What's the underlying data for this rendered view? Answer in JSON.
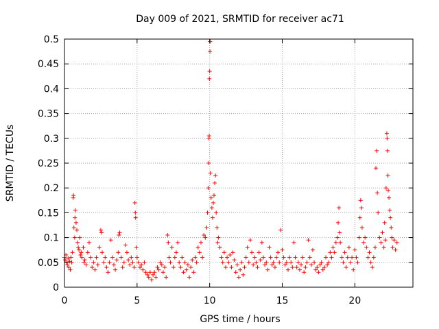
{
  "chart_data": {
    "type": "scatter",
    "title": "Day 009 of 2021, SRMTID for receiver ac71",
    "xlabel": "GPS time / hours",
    "ylabel": "SRMTID / TECUs",
    "xlim": [
      0,
      24
    ],
    "ylim": [
      0,
      0.5
    ],
    "xticks": [
      0,
      5,
      10,
      15,
      20
    ],
    "xtick_labels": [
      "0",
      "5",
      "10",
      "15",
      "20"
    ],
    "yticks": [
      0,
      0.05,
      0.1,
      0.15,
      0.2,
      0.25,
      0.3,
      0.35,
      0.4,
      0.45,
      0.5
    ],
    "ytick_labels": [
      "0",
      "0.05",
      "0.1",
      "0.15",
      "0.2",
      "0.25",
      "0.3",
      "0.35",
      "0.4",
      "0.45",
      "0.5"
    ],
    "grid": true,
    "marker": "+",
    "marker_color": "#ff0000",
    "series": [
      {
        "name": "SRMTID",
        "points": [
          [
            0.0,
            0.06
          ],
          [
            0.05,
            0.055
          ],
          [
            0.1,
            0.065
          ],
          [
            0.15,
            0.05
          ],
          [
            0.2,
            0.045
          ],
          [
            0.25,
            0.058
          ],
          [
            0.3,
            0.04
          ],
          [
            0.35,
            0.052
          ],
          [
            0.4,
            0.035
          ],
          [
            0.45,
            0.06
          ],
          [
            0.5,
            0.05
          ],
          [
            0.55,
            0.07
          ],
          [
            0.6,
            0.18
          ],
          [
            0.62,
            0.185
          ],
          [
            0.65,
            0.12
          ],
          [
            0.7,
            0.1
          ],
          [
            0.72,
            0.14
          ],
          [
            0.75,
            0.155
          ],
          [
            0.8,
            0.13
          ],
          [
            0.85,
            0.115
          ],
          [
            0.9,
            0.09
          ],
          [
            0.95,
            0.08
          ],
          [
            1.0,
            0.075
          ],
          [
            1.05,
            0.1
          ],
          [
            1.1,
            0.065
          ],
          [
            1.15,
            0.07
          ],
          [
            1.2,
            0.06
          ],
          [
            1.3,
            0.08
          ],
          [
            1.35,
            0.05
          ],
          [
            1.4,
            0.055
          ],
          [
            1.5,
            0.045
          ],
          [
            1.6,
            0.07
          ],
          [
            1.7,
            0.09
          ],
          [
            1.8,
            0.06
          ],
          [
            1.9,
            0.04
          ],
          [
            2.0,
            0.05
          ],
          [
            2.1,
            0.035
          ],
          [
            2.2,
            0.06
          ],
          [
            2.3,
            0.045
          ],
          [
            2.4,
            0.08
          ],
          [
            2.5,
            0.115
          ],
          [
            2.55,
            0.11
          ],
          [
            2.6,
            0.07
          ],
          [
            2.7,
            0.05
          ],
          [
            2.8,
            0.06
          ],
          [
            2.9,
            0.04
          ],
          [
            3.0,
            0.03
          ],
          [
            3.1,
            0.05
          ],
          [
            3.2,
            0.095
          ],
          [
            3.3,
            0.06
          ],
          [
            3.4,
            0.045
          ],
          [
            3.5,
            0.035
          ],
          [
            3.6,
            0.055
          ],
          [
            3.7,
            0.07
          ],
          [
            3.75,
            0.105
          ],
          [
            3.8,
            0.11
          ],
          [
            3.9,
            0.06
          ],
          [
            4.0,
            0.04
          ],
          [
            4.1,
            0.05
          ],
          [
            4.2,
            0.085
          ],
          [
            4.3,
            0.07
          ],
          [
            4.4,
            0.055
          ],
          [
            4.5,
            0.045
          ],
          [
            4.6,
            0.06
          ],
          [
            4.7,
            0.05
          ],
          [
            4.8,
            0.04
          ],
          [
            4.85,
            0.17
          ],
          [
            4.88,
            0.15
          ],
          [
            4.9,
            0.14
          ],
          [
            4.95,
            0.08
          ],
          [
            5.0,
            0.06
          ],
          [
            5.1,
            0.05
          ],
          [
            5.2,
            0.04
          ],
          [
            5.3,
            0.045
          ],
          [
            5.4,
            0.035
          ],
          [
            5.5,
            0.05
          ],
          [
            5.6,
            0.03
          ],
          [
            5.7,
            0.025
          ],
          [
            5.8,
            0.02
          ],
          [
            5.9,
            0.03
          ],
          [
            6.0,
            0.015
          ],
          [
            6.1,
            0.025
          ],
          [
            6.2,
            0.03
          ],
          [
            6.3,
            0.02
          ],
          [
            6.4,
            0.04
          ],
          [
            6.5,
            0.035
          ],
          [
            6.6,
            0.05
          ],
          [
            6.7,
            0.045
          ],
          [
            6.8,
            0.03
          ],
          [
            6.9,
            0.04
          ],
          [
            7.0,
            0.02
          ],
          [
            7.1,
            0.105
          ],
          [
            7.15,
            0.09
          ],
          [
            7.2,
            0.06
          ],
          [
            7.3,
            0.05
          ],
          [
            7.4,
            0.08
          ],
          [
            7.5,
            0.04
          ],
          [
            7.6,
            0.06
          ],
          [
            7.7,
            0.07
          ],
          [
            7.8,
            0.09
          ],
          [
            7.9,
            0.05
          ],
          [
            8.0,
            0.04
          ],
          [
            8.1,
            0.06
          ],
          [
            8.2,
            0.03
          ],
          [
            8.3,
            0.05
          ],
          [
            8.4,
            0.035
          ],
          [
            8.5,
            0.045
          ],
          [
            8.6,
            0.02
          ],
          [
            8.7,
            0.04
          ],
          [
            8.8,
            0.055
          ],
          [
            8.9,
            0.03
          ],
          [
            9.0,
            0.06
          ],
          [
            9.1,
            0.05
          ],
          [
            9.2,
            0.08
          ],
          [
            9.3,
            0.07
          ],
          [
            9.4,
            0.09
          ],
          [
            9.5,
            0.06
          ],
          [
            9.6,
            0.105
          ],
          [
            9.7,
            0.1
          ],
          [
            9.8,
            0.12
          ],
          [
            9.85,
            0.15
          ],
          [
            9.9,
            0.2
          ],
          [
            9.93,
            0.25
          ],
          [
            9.95,
            0.3
          ],
          [
            9.97,
            0.305
          ],
          [
            9.98,
            0.42
          ],
          [
            10.0,
            0.435
          ],
          [
            10.02,
            0.475
          ],
          [
            10.03,
            0.495
          ],
          [
            10.05,
            0.23
          ],
          [
            10.1,
            0.18
          ],
          [
            10.15,
            0.16
          ],
          [
            10.2,
            0.14
          ],
          [
            10.25,
            0.17
          ],
          [
            10.3,
            0.185
          ],
          [
            10.35,
            0.21
          ],
          [
            10.4,
            0.225
          ],
          [
            10.45,
            0.15
          ],
          [
            10.5,
            0.12
          ],
          [
            10.55,
            0.09
          ],
          [
            10.6,
            0.1
          ],
          [
            10.7,
            0.08
          ],
          [
            10.8,
            0.06
          ],
          [
            10.9,
            0.05
          ],
          [
            11.0,
            0.07
          ],
          [
            11.1,
            0.04
          ],
          [
            11.2,
            0.06
          ],
          [
            11.3,
            0.05
          ],
          [
            11.4,
            0.065
          ],
          [
            11.5,
            0.04
          ],
          [
            11.6,
            0.07
          ],
          [
            11.7,
            0.055
          ],
          [
            11.8,
            0.03
          ],
          [
            11.9,
            0.045
          ],
          [
            12.0,
            0.02
          ],
          [
            12.1,
            0.035
          ],
          [
            12.2,
            0.05
          ],
          [
            12.3,
            0.025
          ],
          [
            12.4,
            0.04
          ],
          [
            12.5,
            0.06
          ],
          [
            12.6,
            0.08
          ],
          [
            12.7,
            0.05
          ],
          [
            12.8,
            0.095
          ],
          [
            12.9,
            0.07
          ],
          [
            13.0,
            0.045
          ],
          [
            13.1,
            0.06
          ],
          [
            13.2,
            0.05
          ],
          [
            13.3,
            0.04
          ],
          [
            13.4,
            0.07
          ],
          [
            13.5,
            0.055
          ],
          [
            13.6,
            0.09
          ],
          [
            13.7,
            0.06
          ],
          [
            13.8,
            0.045
          ],
          [
            13.9,
            0.05
          ],
          [
            14.0,
            0.035
          ],
          [
            14.1,
            0.08
          ],
          [
            14.2,
            0.06
          ],
          [
            14.3,
            0.045
          ],
          [
            14.4,
            0.05
          ],
          [
            14.5,
            0.04
          ],
          [
            14.6,
            0.06
          ],
          [
            14.7,
            0.07
          ],
          [
            14.8,
            0.05
          ],
          [
            14.9,
            0.115
          ],
          [
            15.0,
            0.075
          ],
          [
            15.1,
            0.06
          ],
          [
            15.2,
            0.045
          ],
          [
            15.3,
            0.05
          ],
          [
            15.4,
            0.035
          ],
          [
            15.5,
            0.06
          ],
          [
            15.6,
            0.05
          ],
          [
            15.7,
            0.04
          ],
          [
            15.8,
            0.09
          ],
          [
            15.9,
            0.06
          ],
          [
            16.0,
            0.04
          ],
          [
            16.1,
            0.05
          ],
          [
            16.2,
            0.035
          ],
          [
            16.3,
            0.045
          ],
          [
            16.4,
            0.06
          ],
          [
            16.5,
            0.03
          ],
          [
            16.6,
            0.04
          ],
          [
            16.7,
            0.05
          ],
          [
            16.8,
            0.095
          ],
          [
            16.9,
            0.06
          ],
          [
            17.0,
            0.045
          ],
          [
            17.1,
            0.075
          ],
          [
            17.2,
            0.05
          ],
          [
            17.3,
            0.035
          ],
          [
            17.4,
            0.04
          ],
          [
            17.5,
            0.03
          ],
          [
            17.6,
            0.045
          ],
          [
            17.7,
            0.05
          ],
          [
            17.8,
            0.035
          ],
          [
            17.9,
            0.04
          ],
          [
            18.0,
            0.06
          ],
          [
            18.1,
            0.045
          ],
          [
            18.2,
            0.05
          ],
          [
            18.3,
            0.07
          ],
          [
            18.4,
            0.06
          ],
          [
            18.5,
            0.08
          ],
          [
            18.6,
            0.07
          ],
          [
            18.7,
            0.09
          ],
          [
            18.8,
            0.1
          ],
          [
            18.85,
            0.13
          ],
          [
            18.9,
            0.16
          ],
          [
            18.95,
            0.11
          ],
          [
            19.0,
            0.09
          ],
          [
            19.1,
            0.06
          ],
          [
            19.2,
            0.05
          ],
          [
            19.3,
            0.07
          ],
          [
            19.4,
            0.04
          ],
          [
            19.5,
            0.06
          ],
          [
            19.6,
            0.08
          ],
          [
            19.7,
            0.05
          ],
          [
            19.8,
            0.06
          ],
          [
            19.9,
            0.035
          ],
          [
            20.0,
            0.075
          ],
          [
            20.1,
            0.06
          ],
          [
            20.2,
            0.05
          ],
          [
            20.3,
            0.1
          ],
          [
            20.35,
            0.14
          ],
          [
            20.4,
            0.175
          ],
          [
            20.45,
            0.16
          ],
          [
            20.5,
            0.12
          ],
          [
            20.6,
            0.09
          ],
          [
            20.7,
            0.1
          ],
          [
            20.8,
            0.08
          ],
          [
            20.9,
            0.06
          ],
          [
            21.0,
            0.07
          ],
          [
            21.1,
            0.05
          ],
          [
            21.2,
            0.04
          ],
          [
            21.3,
            0.06
          ],
          [
            21.4,
            0.08
          ],
          [
            21.45,
            0.24
          ],
          [
            21.5,
            0.275
          ],
          [
            21.55,
            0.19
          ],
          [
            21.6,
            0.15
          ],
          [
            21.7,
            0.1
          ],
          [
            21.8,
            0.09
          ],
          [
            21.9,
            0.11
          ],
          [
            22.0,
            0.08
          ],
          [
            22.05,
            0.13
          ],
          [
            22.1,
            0.095
          ],
          [
            22.15,
            0.2
          ],
          [
            22.2,
            0.31
          ],
          [
            22.22,
            0.3
          ],
          [
            22.25,
            0.275
          ],
          [
            22.28,
            0.225
          ],
          [
            22.3,
            0.195
          ],
          [
            22.35,
            0.18
          ],
          [
            22.4,
            0.155
          ],
          [
            22.45,
            0.14
          ],
          [
            22.5,
            0.12
          ],
          [
            22.55,
            0.1
          ],
          [
            22.6,
            0.08
          ],
          [
            22.7,
            0.095
          ],
          [
            22.8,
            0.075
          ],
          [
            22.9,
            0.09
          ]
        ]
      }
    ]
  }
}
